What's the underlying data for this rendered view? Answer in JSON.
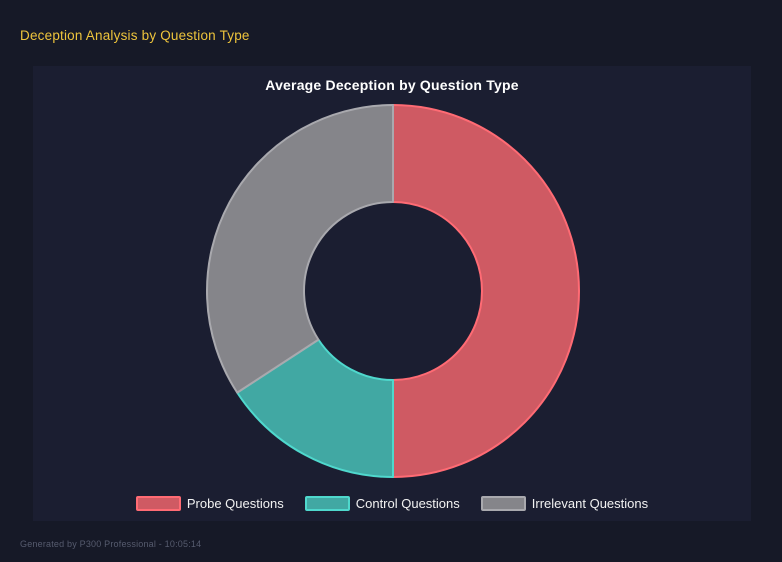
{
  "page": {
    "title": "Deception Analysis by Question Type",
    "footer": "Generated by P300 Professional - 10:05:14"
  },
  "colors": {
    "page_bg": "#161927",
    "panel_bg": "#1b1e31",
    "page_title": "#eec43c",
    "chart_title": "#ffffff",
    "legend_text": "#f2f2f2",
    "footer_text": "#565b6e"
  },
  "chart_data": {
    "type": "pie",
    "variant": "doughnut",
    "title": "Average Deception by Question Type",
    "categories": [
      "Probe Questions",
      "Control Questions",
      "Irrelevant Questions"
    ],
    "values": [
      50.0,
      15.8,
      34.2
    ],
    "values_unit": "percent share of ring (estimated from segment angles)",
    "segments": [
      {
        "label": "Probe Questions",
        "value": 50.0,
        "angle_deg": 180,
        "color": "#cf5a63",
        "border_color": "#ff6b74"
      },
      {
        "label": "Control Questions",
        "value": 15.8,
        "angle_deg": 57,
        "color": "#41a8a3",
        "border_color": "#4fd8cd"
      },
      {
        "label": "Irrelevant Questions",
        "value": 34.2,
        "angle_deg": 123,
        "color": "#85858a",
        "border_color": "#a9a9ae"
      }
    ],
    "legend_position": "bottom",
    "start_angle_deg": 0,
    "direction": "clockwise",
    "cutout_ratio": 0.48,
    "border_width": 2
  }
}
